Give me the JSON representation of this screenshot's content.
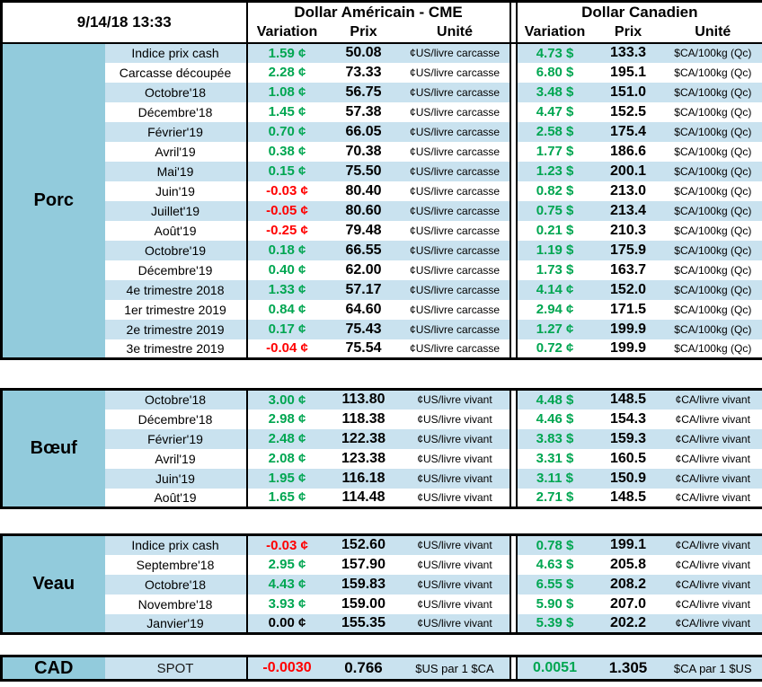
{
  "header": {
    "timestamp": "9/14/18 13:33",
    "us_title": "Dollar Américain - CME",
    "ca_title": "Dollar Canadien",
    "col_variation": "Variation",
    "col_prix": "Prix",
    "col_unite": "Unité"
  },
  "colors": {
    "section_label_bg": "#92CBDC",
    "stripe_row_bg": "#C9E2EF",
    "positive_green": "#00A651",
    "negative_red": "#FF0000",
    "neutral_black": "#000000"
  },
  "sections": [
    {
      "label": "Porc",
      "rows": [
        {
          "name": "Indice prix cash",
          "us": {
            "var": "1.59 ¢",
            "trend": "up",
            "prix": "50.08",
            "unit": "¢US/livre carcasse"
          },
          "ca": {
            "var": "4.73 $",
            "trend": "up",
            "prix": "133.3",
            "unit": "$CA/100kg (Qc)"
          }
        },
        {
          "name": "Carcasse découpée",
          "us": {
            "var": "2.28 ¢",
            "trend": "up",
            "prix": "73.33",
            "unit": "¢US/livre carcasse"
          },
          "ca": {
            "var": "6.80 $",
            "trend": "up",
            "prix": "195.1",
            "unit": "$CA/100kg (Qc)"
          }
        },
        {
          "name": "Octobre'18",
          "us": {
            "var": "1.08 ¢",
            "trend": "up",
            "prix": "56.75",
            "unit": "¢US/livre carcasse"
          },
          "ca": {
            "var": "3.48 $",
            "trend": "up",
            "prix": "151.0",
            "unit": "$CA/100kg (Qc)"
          }
        },
        {
          "name": "Décembre'18",
          "us": {
            "var": "1.45 ¢",
            "trend": "up",
            "prix": "57.38",
            "unit": "¢US/livre carcasse"
          },
          "ca": {
            "var": "4.47 $",
            "trend": "up",
            "prix": "152.5",
            "unit": "$CA/100kg (Qc)"
          }
        },
        {
          "name": "Février'19",
          "us": {
            "var": "0.70 ¢",
            "trend": "up",
            "prix": "66.05",
            "unit": "¢US/livre carcasse"
          },
          "ca": {
            "var": "2.58 $",
            "trend": "up",
            "prix": "175.4",
            "unit": "$CA/100kg (Qc)"
          }
        },
        {
          "name": "Avril'19",
          "us": {
            "var": "0.38 ¢",
            "trend": "up",
            "prix": "70.38",
            "unit": "¢US/livre carcasse"
          },
          "ca": {
            "var": "1.77 $",
            "trend": "up",
            "prix": "186.6",
            "unit": "$CA/100kg (Qc)"
          }
        },
        {
          "name": "Mai'19",
          "us": {
            "var": "0.15 ¢",
            "trend": "up",
            "prix": "75.50",
            "unit": "¢US/livre carcasse"
          },
          "ca": {
            "var": "1.23 $",
            "trend": "up",
            "prix": "200.1",
            "unit": "$CA/100kg (Qc)"
          }
        },
        {
          "name": "Juin'19",
          "us": {
            "var": "-0.03 ¢",
            "trend": "down",
            "prix": "80.40",
            "unit": "¢US/livre carcasse"
          },
          "ca": {
            "var": "0.82 $",
            "trend": "up",
            "prix": "213.0",
            "unit": "$CA/100kg (Qc)"
          }
        },
        {
          "name": "Juillet'19",
          "us": {
            "var": "-0.05 ¢",
            "trend": "down",
            "prix": "80.60",
            "unit": "¢US/livre carcasse"
          },
          "ca": {
            "var": "0.75 $",
            "trend": "up",
            "prix": "213.4",
            "unit": "$CA/100kg (Qc)"
          }
        },
        {
          "name": "Août'19",
          "us": {
            "var": "-0.25 ¢",
            "trend": "down",
            "prix": "79.48",
            "unit": "¢US/livre carcasse"
          },
          "ca": {
            "var": "0.21 $",
            "trend": "up",
            "prix": "210.3",
            "unit": "$CA/100kg (Qc)"
          }
        },
        {
          "name": "Octobre'19",
          "us": {
            "var": "0.18 ¢",
            "trend": "up",
            "prix": "66.55",
            "unit": "¢US/livre carcasse"
          },
          "ca": {
            "var": "1.19 $",
            "trend": "up",
            "prix": "175.9",
            "unit": "$CA/100kg (Qc)"
          }
        },
        {
          "name": "Décembre'19",
          "us": {
            "var": "0.40 ¢",
            "trend": "up",
            "prix": "62.00",
            "unit": "¢US/livre carcasse"
          },
          "ca": {
            "var": "1.73 $",
            "trend": "up",
            "prix": "163.7",
            "unit": "$CA/100kg (Qc)"
          }
        },
        {
          "name": "4e trimestre 2018",
          "us": {
            "var": "1.33 ¢",
            "trend": "up",
            "prix": "57.17",
            "unit": "¢US/livre carcasse"
          },
          "ca": {
            "var": "4.14 ¢",
            "trend": "up",
            "prix": "152.0",
            "unit": "$CA/100kg (Qc)"
          }
        },
        {
          "name": "1er trimestre 2019",
          "us": {
            "var": "0.84 ¢",
            "trend": "up",
            "prix": "64.60",
            "unit": "¢US/livre carcasse"
          },
          "ca": {
            "var": "2.94 ¢",
            "trend": "up",
            "prix": "171.5",
            "unit": "$CA/100kg (Qc)"
          }
        },
        {
          "name": "2e trimestre 2019",
          "us": {
            "var": "0.17 ¢",
            "trend": "up",
            "prix": "75.43",
            "unit": "¢US/livre carcasse"
          },
          "ca": {
            "var": "1.27 ¢",
            "trend": "up",
            "prix": "199.9",
            "unit": "$CA/100kg (Qc)"
          }
        },
        {
          "name": "3e trimestre 2019",
          "us": {
            "var": "-0.04 ¢",
            "trend": "down",
            "prix": "75.54",
            "unit": "¢US/livre carcasse"
          },
          "ca": {
            "var": "0.72 ¢",
            "trend": "up",
            "prix": "199.9",
            "unit": "$CA/100kg (Qc)"
          }
        }
      ]
    },
    {
      "label": "Bœuf",
      "rows": [
        {
          "name": "Octobre'18",
          "us": {
            "var": "3.00 ¢",
            "trend": "up",
            "prix": "113.80",
            "unit": "¢US/livre vivant"
          },
          "ca": {
            "var": "4.48 $",
            "trend": "up",
            "prix": "148.5",
            "unit": "¢CA/livre vivant"
          }
        },
        {
          "name": "Décembre'18",
          "us": {
            "var": "2.98 ¢",
            "trend": "up",
            "prix": "118.38",
            "unit": "¢US/livre vivant"
          },
          "ca": {
            "var": "4.46 $",
            "trend": "up",
            "prix": "154.3",
            "unit": "¢CA/livre vivant"
          }
        },
        {
          "name": "Février'19",
          "us": {
            "var": "2.48 ¢",
            "trend": "up",
            "prix": "122.38",
            "unit": "¢US/livre vivant"
          },
          "ca": {
            "var": "3.83 $",
            "trend": "up",
            "prix": "159.3",
            "unit": "¢CA/livre vivant"
          }
        },
        {
          "name": "Avril'19",
          "us": {
            "var": "2.08 ¢",
            "trend": "up",
            "prix": "123.38",
            "unit": "¢US/livre vivant"
          },
          "ca": {
            "var": "3.31 $",
            "trend": "up",
            "prix": "160.5",
            "unit": "¢CA/livre vivant"
          }
        },
        {
          "name": "Juin'19",
          "us": {
            "var": "1.95 ¢",
            "trend": "up",
            "prix": "116.18",
            "unit": "¢US/livre vivant"
          },
          "ca": {
            "var": "3.11 $",
            "trend": "up",
            "prix": "150.9",
            "unit": "¢CA/livre vivant"
          }
        },
        {
          "name": "Août'19",
          "us": {
            "var": "1.65 ¢",
            "trend": "up",
            "prix": "114.48",
            "unit": "¢US/livre vivant"
          },
          "ca": {
            "var": "2.71 $",
            "trend": "up",
            "prix": "148.5",
            "unit": "¢CA/livre vivant"
          }
        }
      ]
    },
    {
      "label": "Veau",
      "rows": [
        {
          "name": "Indice prix cash",
          "us": {
            "var": "-0.03 ¢",
            "trend": "down",
            "prix": "152.60",
            "unit": "¢US/livre vivant"
          },
          "ca": {
            "var": "0.78 $",
            "trend": "up",
            "prix": "199.1",
            "unit": "¢CA/livre vivant"
          }
        },
        {
          "name": "Septembre'18",
          "us": {
            "var": "2.95 ¢",
            "trend": "up",
            "prix": "157.90",
            "unit": "¢US/livre vivant"
          },
          "ca": {
            "var": "4.63 $",
            "trend": "up",
            "prix": "205.8",
            "unit": "¢CA/livre vivant"
          }
        },
        {
          "name": "Octobre'18",
          "us": {
            "var": "4.43 ¢",
            "trend": "up",
            "prix": "159.83",
            "unit": "¢US/livre vivant"
          },
          "ca": {
            "var": "6.55 $",
            "trend": "up",
            "prix": "208.2",
            "unit": "¢CA/livre vivant"
          }
        },
        {
          "name": "Novembre'18",
          "us": {
            "var": "3.93 ¢",
            "trend": "up",
            "prix": "159.00",
            "unit": "¢US/livre vivant"
          },
          "ca": {
            "var": "5.90 $",
            "trend": "up",
            "prix": "207.0",
            "unit": "¢CA/livre vivant"
          }
        },
        {
          "name": "Janvier'19",
          "us": {
            "var": "0.00 ¢",
            "trend": "flat",
            "prix": "155.35",
            "unit": "¢US/livre vivant"
          },
          "ca": {
            "var": "5.39 $",
            "trend": "up",
            "prix": "202.2",
            "unit": "¢CA/livre vivant"
          }
        }
      ]
    },
    {
      "label": "CAD",
      "rows": [
        {
          "name": "SPOT",
          "us": {
            "var": "-0.0030",
            "trend": "down",
            "prix": "0.766",
            "unit": "$US par 1 $CA"
          },
          "ca": {
            "var": "0.0051",
            "trend": "up",
            "prix": "1.305",
            "unit": "$CA par 1 $US"
          }
        }
      ]
    }
  ]
}
